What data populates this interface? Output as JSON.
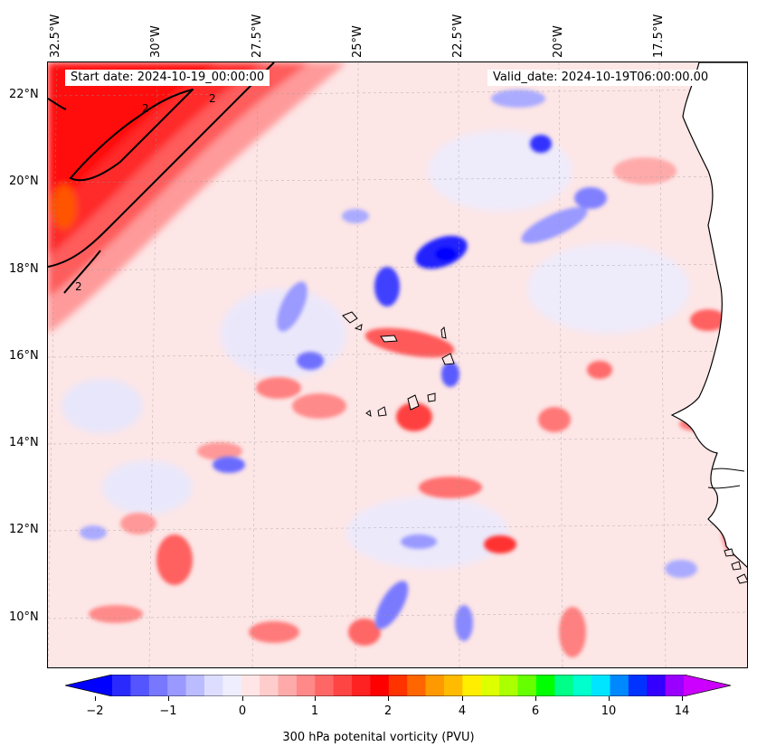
{
  "map": {
    "start_date_label": "Start date: 2024-10-19_00:00:00",
    "valid_date_label": "Valid_date: 2024-10-19T06:00:00.00",
    "longitude_labels": [
      "32.5°W",
      "30°W",
      "27.5°W",
      "25°W",
      "22.5°W",
      "20°W",
      "17.5°W"
    ],
    "latitude_labels": [
      "22°N",
      "20°N",
      "18°N",
      "16°N",
      "14°N",
      "12°N",
      "10°N"
    ],
    "contour_label": "2",
    "land_color": "#ffffff",
    "coastline_color": "#000000"
  },
  "colorbar": {
    "label": "300 hPa potenital vorticity (PVU)",
    "tick_labels": [
      "−2",
      "−1",
      "0",
      "1",
      "2",
      "4",
      "6",
      "10",
      "14"
    ],
    "colors": [
      "#0000ff",
      "#2a2aff",
      "#5555ff",
      "#7777ff",
      "#9999ff",
      "#bbbbff",
      "#ddddff",
      "#eeeeff",
      "#ffe5e5",
      "#ffcccc",
      "#ffaaaa",
      "#ff8888",
      "#ff6666",
      "#ff4444",
      "#ff2222",
      "#ff0000",
      "#ff3300",
      "#ff6600",
      "#ff9900",
      "#ffbb00",
      "#ffee00",
      "#ddff00",
      "#aaff00",
      "#66ff00",
      "#00ff00",
      "#00ff88",
      "#00ffcc",
      "#00e5ff",
      "#0088ff",
      "#0033ff",
      "#3300ff",
      "#9900ff",
      "#cc00ff"
    ]
  }
}
